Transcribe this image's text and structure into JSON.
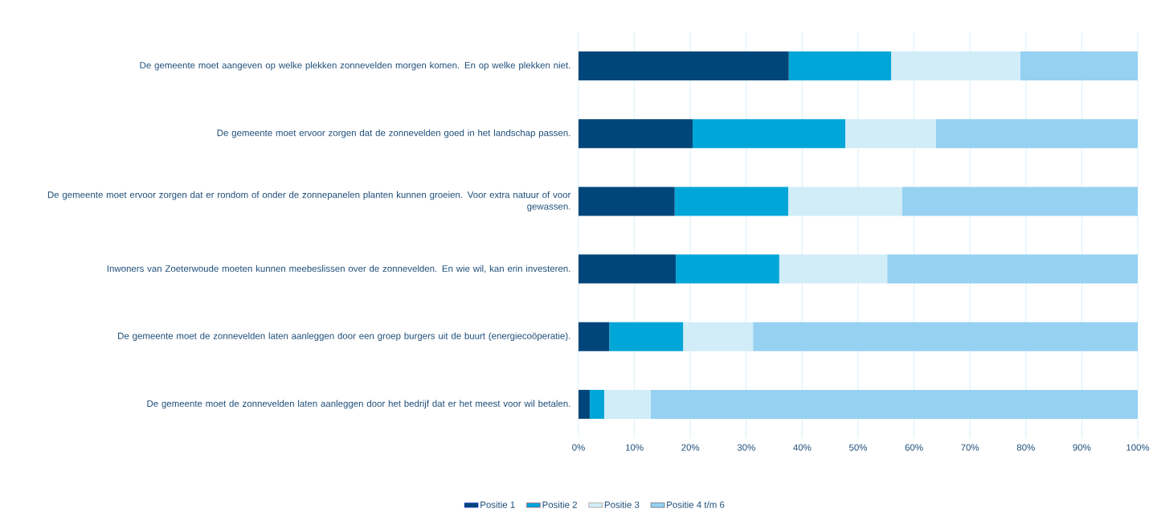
{
  "chart_data": {
    "type": "bar",
    "orientation": "horizontal",
    "stacked": true,
    "categories": [
      "De gemeente moet aangeven op welke plekken zonnevelden morgen komen. En op welke plekken niet.",
      "De gemeente moet ervoor zorgen dat de zonnevelden goed in het landschap passen.",
      "De gemeente moet ervoor zorgen dat er rondom of onder de zonnepanelen planten kunnen groeien. Voor extra natuur of voor gewassen.",
      "Inwoners van Zoeterwoude moeten kunnen meebeslissen over de zonnevelden. En wie wil, kan erin investeren.",
      "De gemeente moet de zonnevelden laten aanleggen door een groep burgers uit de buurt (energiecoöperatie).",
      "De gemeente moet de zonnevelden laten aanleggen door het bedrijf dat er het meest voor wil betalen."
    ],
    "series": [
      {
        "name": "Positie 1",
        "color": "#00467a",
        "values": [
          37.6,
          20.4,
          17.2,
          17.4,
          5.5,
          2.0
        ]
      },
      {
        "name": "Positie 2",
        "color": "#00a6d8",
        "values": [
          18.3,
          27.3,
          20.3,
          18.5,
          13.2,
          2.6
        ]
      },
      {
        "name": "Positie 3",
        "color": "#d0edf8",
        "values": [
          23.1,
          16.2,
          20.4,
          19.3,
          12.5,
          8.3
        ]
      },
      {
        "name": "Positie 4 t/m 6",
        "color": "#96d1f2",
        "values": [
          21.0,
          36.1,
          42.1,
          44.8,
          68.8,
          87.1
        ]
      }
    ],
    "xlim": [
      0,
      100
    ],
    "xticks": [
      {
        "value": 0,
        "label": "0%"
      },
      {
        "value": 10,
        "label": "10%"
      },
      {
        "value": 20,
        "label": "20%"
      },
      {
        "value": 30,
        "label": "30%"
      },
      {
        "value": 40,
        "label": "40%"
      },
      {
        "value": 50,
        "label": "50%"
      },
      {
        "value": 60,
        "label": "60%"
      },
      {
        "value": 70,
        "label": "70%"
      },
      {
        "value": 80,
        "label": "80%"
      },
      {
        "value": 90,
        "label": "90%"
      },
      {
        "value": 100,
        "label": "100%"
      }
    ],
    "grid": "x",
    "legend": "bottom"
  }
}
